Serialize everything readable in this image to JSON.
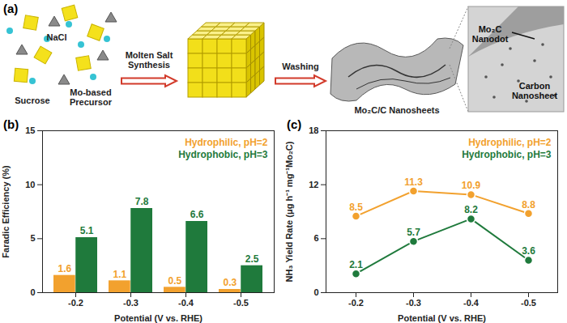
{
  "diagram": {
    "title": "(a)",
    "inputs": [
      "NaCl",
      "Sucrose",
      "Mo-based Precursor"
    ],
    "steps": [
      "Molten Salt Synthesis",
      "Washing"
    ],
    "product": "Mo₂C/C Nanosheets",
    "callouts": [
      "Mo₂C Nanodot",
      "Carbon Nanosheet"
    ]
  },
  "chart_data": [
    {
      "type": "bar",
      "title": "(b)",
      "x_label": "Potential (V vs. RHE)",
      "y_label": "Faradic Efficiency (%)",
      "categories": [
        "-0.2",
        "-0.3",
        "-0.4",
        "-0.5"
      ],
      "series": [
        {
          "name": "Hydrophilic, pH=2",
          "color": "#f2a12e",
          "values": [
            1.6,
            1.1,
            0.5,
            0.3
          ]
        },
        {
          "name": "Hydrophobic, pH=3",
          "color": "#1f7a3c",
          "values": [
            5.1,
            7.8,
            6.6,
            2.5
          ]
        }
      ],
      "ylim": [
        0,
        15
      ],
      "yticks": [
        0,
        5,
        10,
        15
      ],
      "data_labels": true,
      "legend": "top-right"
    },
    {
      "type": "line",
      "title": "(c)",
      "x_label": "Potential (V vs. RHE)",
      "y_label": "NH₃ Yield Rate (μg h⁻¹ mg⁻¹Mo₂C)",
      "categories": [
        "-0.2",
        "-0.3",
        "-0.4",
        "-0.5"
      ],
      "series": [
        {
          "name": "Hydrophilic, pH=2",
          "color": "#f2a12e",
          "values": [
            8.5,
            11.3,
            10.9,
            8.8
          ]
        },
        {
          "name": "Hydrophobic, pH=3",
          "color": "#1f7a3c",
          "values": [
            2.1,
            5.7,
            8.2,
            3.6
          ]
        }
      ],
      "ylim": [
        0,
        18
      ],
      "yticks": [
        0,
        6,
        12,
        18
      ],
      "data_labels": true,
      "legend": "top-right",
      "marker": "circle"
    }
  ]
}
